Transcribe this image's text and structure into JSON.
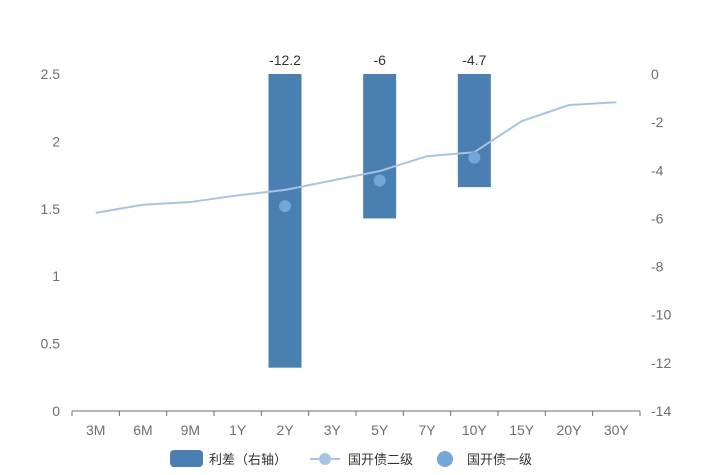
{
  "chart_data": {
    "type": "bar",
    "categories": [
      "3M",
      "6M",
      "9M",
      "1Y",
      "2Y",
      "3Y",
      "5Y",
      "7Y",
      "10Y",
      "15Y",
      "20Y",
      "30Y"
    ],
    "y_left": {
      "ylim": [
        0,
        2.5
      ],
      "ticks": [
        "0",
        "0.5",
        "1",
        "1.5",
        "2",
        "2.5"
      ]
    },
    "y_right": {
      "ylim": [
        -14,
        0
      ],
      "ticks": [
        "0",
        "-2",
        "-4",
        "-6",
        "-8",
        "-10",
        "-12",
        "-14"
      ]
    },
    "series": [
      {
        "name": "利差（右轴）",
        "type": "bar",
        "axis": "right",
        "color": "#4a7fb2",
        "values": [
          null,
          null,
          null,
          null,
          -12.2,
          null,
          -6,
          null,
          -4.7,
          null,
          null,
          null
        ],
        "labels": [
          null,
          null,
          null,
          null,
          "-12.2",
          null,
          "-6",
          null,
          "-4.7",
          null,
          null,
          null
        ]
      },
      {
        "name": "国开债二级",
        "type": "line",
        "axis": "left",
        "color": "#a9c3e3",
        "values": [
          1.47,
          1.53,
          1.55,
          1.6,
          1.64,
          1.71,
          1.78,
          1.89,
          1.92,
          2.15,
          2.27,
          2.29
        ]
      },
      {
        "name": "国开债一级",
        "type": "scatter",
        "axis": "left",
        "color": "#74a6da",
        "values": [
          null,
          null,
          null,
          null,
          1.52,
          null,
          1.71,
          null,
          1.88,
          null,
          null,
          null
        ]
      }
    ],
    "grid": false,
    "legend": "bottom-center"
  }
}
